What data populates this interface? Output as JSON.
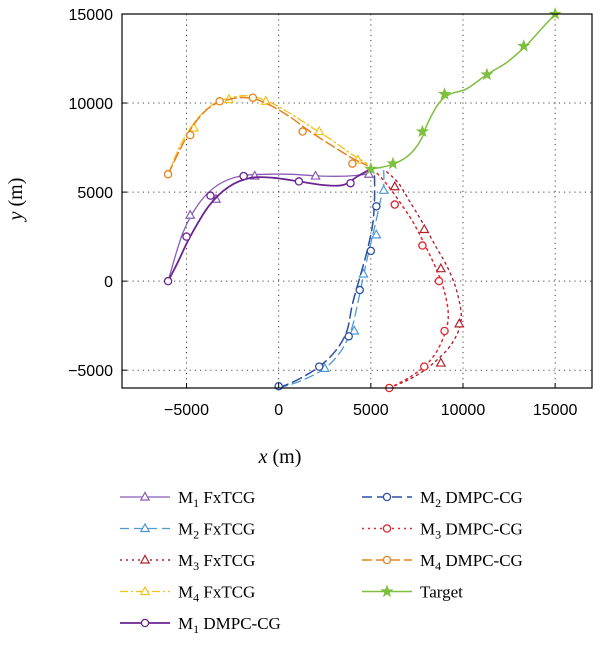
{
  "chart_data": {
    "type": "line",
    "title": "",
    "xlabel": {
      "var": "x",
      "unit": " (m)"
    },
    "ylabel": {
      "var": "y",
      "unit": " (m)"
    },
    "xlim": [
      -8500,
      17000
    ],
    "ylim": [
      -6000,
      15000
    ],
    "xticks": [
      -5000,
      0,
      5000,
      10000,
      15000
    ],
    "yticks": [
      -5000,
      0,
      5000,
      10000,
      15000
    ],
    "xtick_labels": [
      "−5000",
      "0",
      "5000",
      "10000",
      "15000"
    ],
    "ytick_labels": [
      "−5000",
      "0",
      "5000",
      "10000",
      "15000"
    ],
    "grid": true,
    "legend_position": "below",
    "series": [
      {
        "name": "M1 FxTCG",
        "sub": "1",
        "label_rest": " FxTCG",
        "label_prefix": "M",
        "color": "#8a5cb8",
        "dash": "none",
        "marker": "triangle",
        "width": 1.3,
        "x": [
          -6000,
          -5200,
          -4300,
          -3300,
          -2100,
          -800,
          700,
          2300,
          3700,
          4700,
          5000
        ],
        "y": [
          0,
          2700,
          4400,
          5400,
          5900,
          6000,
          6000,
          5900,
          5900,
          6000,
          6100
        ],
        "markers": [
          [
            -4800,
            3700
          ],
          [
            -3400,
            4600
          ],
          [
            -1300,
            5900
          ],
          [
            2000,
            5900
          ],
          [
            4900,
            6000
          ]
        ]
      },
      {
        "name": "M2 FxTCG",
        "sub": "2",
        "label_rest": " FxTCG",
        "label_prefix": "M",
        "color": "#4f9ad6",
        "dash": "9,5",
        "marker": "triangle",
        "width": 1.3,
        "x": [
          0,
          1200,
          2500,
          3400,
          3950,
          4300,
          4600,
          4900,
          5200,
          5500,
          5700,
          5700
        ],
        "y": [
          -6000,
          -5600,
          -4900,
          -3900,
          -2700,
          -1200,
          300,
          1700,
          3000,
          4400,
          5400,
          6200
        ],
        "markers": [
          [
            2500,
            -4900
          ],
          [
            4100,
            -2800
          ],
          [
            4600,
            400
          ],
          [
            5300,
            2600
          ],
          [
            5700,
            5100
          ]
        ]
      },
      {
        "name": "M3 FxTCG",
        "sub": "3",
        "label_rest": " FxTCG",
        "label_prefix": "M",
        "color": "#b0202f",
        "dash": "2,4",
        "marker": "triangle",
        "width": 1.4,
        "x": [
          6000,
          7300,
          8400,
          9400,
          9900,
          9700,
          9200,
          8500,
          7800,
          7100,
          6500,
          5800
        ],
        "y": [
          -6000,
          -5400,
          -4600,
          -3500,
          -2200,
          -700,
          700,
          2000,
          3300,
          4500,
          5500,
          6200
        ],
        "markers": [
          [
            8800,
            -4600
          ],
          [
            9800,
            -2400
          ],
          [
            8800,
            700
          ],
          [
            7900,
            2900
          ],
          [
            6300,
            5300
          ]
        ]
      },
      {
        "name": "M4 FxTCG",
        "sub": "4",
        "label_rest": " FxTCG",
        "label_prefix": "M",
        "color": "#f2c31c",
        "dash": "8,3,2,3",
        "marker": "triangle",
        "width": 1.3,
        "x": [
          -6000,
          -5300,
          -4500,
          -3600,
          -2600,
          -1600,
          -600,
          500,
          1700,
          2900,
          4000,
          4800
        ],
        "y": [
          6000,
          7700,
          9000,
          9900,
          10300,
          10400,
          10100,
          9500,
          8700,
          7900,
          7100,
          6600
        ],
        "markers": [
          [
            -4600,
            8600
          ],
          [
            -2700,
            10200
          ],
          [
            -700,
            10100
          ],
          [
            2200,
            8400
          ],
          [
            4300,
            6800
          ]
        ]
      },
      {
        "name": "M1 DMPC-CG",
        "sub": "1",
        "label_rest": " DMPC-CG",
        "label_prefix": "M",
        "color": "#6b2490",
        "dash": "none",
        "marker": "circle",
        "width": 1.8,
        "x": [
          -6000,
          -5500,
          -4800,
          -3800,
          -2700,
          -1500,
          -300,
          1100,
          2400,
          3500,
          4300,
          5000
        ],
        "y": [
          0,
          1000,
          2500,
          4200,
          5300,
          5800,
          5800,
          5600,
          5400,
          5400,
          5900,
          6300
        ],
        "markers": [
          [
            -6000,
            0
          ],
          [
            -5000,
            2500
          ],
          [
            -3700,
            4800
          ],
          [
            -1900,
            5900
          ],
          [
            1100,
            5600
          ],
          [
            3900,
            5500
          ]
        ]
      },
      {
        "name": "M2 DMPC-CG",
        "sub": "2",
        "label_rest": " DMPC-CG",
        "label_prefix": "M",
        "color": "#2c4fa3",
        "dash": "10,5",
        "marker": "circle",
        "width": 1.5,
        "x": [
          0,
          1100,
          2200,
          3100,
          3700,
          4000,
          4400,
          4800,
          5100,
          5200,
          5200
        ],
        "y": [
          -6000,
          -5500,
          -4800,
          -3900,
          -2800,
          -1300,
          200,
          1700,
          3200,
          4600,
          6000
        ],
        "markers": [
          [
            0,
            -5900
          ],
          [
            2200,
            -4800
          ],
          [
            3800,
            -3100
          ],
          [
            4400,
            -500
          ],
          [
            5000,
            1700
          ],
          [
            5300,
            4200
          ]
        ]
      },
      {
        "name": "M3 DMPC-CG",
        "sub": "3",
        "label_rest": " DMPC-CG",
        "label_prefix": "M",
        "color": "#e0262f",
        "dash": "2,4",
        "marker": "circle",
        "width": 1.5,
        "x": [
          6000,
          7100,
          8100,
          8800,
          9200,
          9000,
          8500,
          7900,
          7300,
          6600,
          5900,
          5300
        ],
        "y": [
          -6000,
          -5400,
          -4600,
          -3500,
          -2100,
          -600,
          800,
          2100,
          3300,
          4400,
          5400,
          6100
        ],
        "markers": [
          [
            6000,
            -6000
          ],
          [
            7900,
            -4800
          ],
          [
            9000,
            -2800
          ],
          [
            8700,
            0
          ],
          [
            7800,
            2000
          ],
          [
            6300,
            4300
          ]
        ]
      },
      {
        "name": "M4 DMPC-CG",
        "sub": "4",
        "label_rest": " DMPC-CG",
        "label_prefix": "M",
        "color": "#e8821c",
        "dash": "10,4",
        "marker": "circle",
        "width": 1.5,
        "x": [
          -6000,
          -5300,
          -4600,
          -3700,
          -2700,
          -1700,
          -700,
          500,
          1700,
          2900,
          4000,
          4800
        ],
        "y": [
          6000,
          7500,
          8800,
          9800,
          10200,
          10300,
          10000,
          9300,
          8400,
          7600,
          6900,
          6500
        ],
        "markers": [
          [
            -6000,
            6000
          ],
          [
            -4800,
            8200
          ],
          [
            -3200,
            10100
          ],
          [
            -1400,
            10300
          ],
          [
            1300,
            8400
          ],
          [
            4000,
            6600
          ]
        ]
      },
      {
        "name": "Target",
        "sub": "",
        "label_rest": "Target",
        "label_prefix": "",
        "color": "#7fbf3f",
        "dash": "none",
        "marker": "star",
        "width": 1.5,
        "x": [
          5000,
          5600,
          6300,
          7100,
          7700,
          8100,
          8700,
          9300,
          10200,
          11300,
          12400,
          13400,
          14200,
          15000
        ],
        "y": [
          6300,
          6400,
          6600,
          7100,
          7900,
          8900,
          10000,
          10500,
          10800,
          11600,
          12300,
          13200,
          14100,
          15000
        ],
        "markers": [
          [
            5000,
            6300
          ],
          [
            6200,
            6600
          ],
          [
            7800,
            8400
          ],
          [
            9000,
            10500
          ],
          [
            11300,
            11600
          ],
          [
            13300,
            13200
          ],
          [
            15000,
            15000
          ]
        ]
      }
    ]
  }
}
